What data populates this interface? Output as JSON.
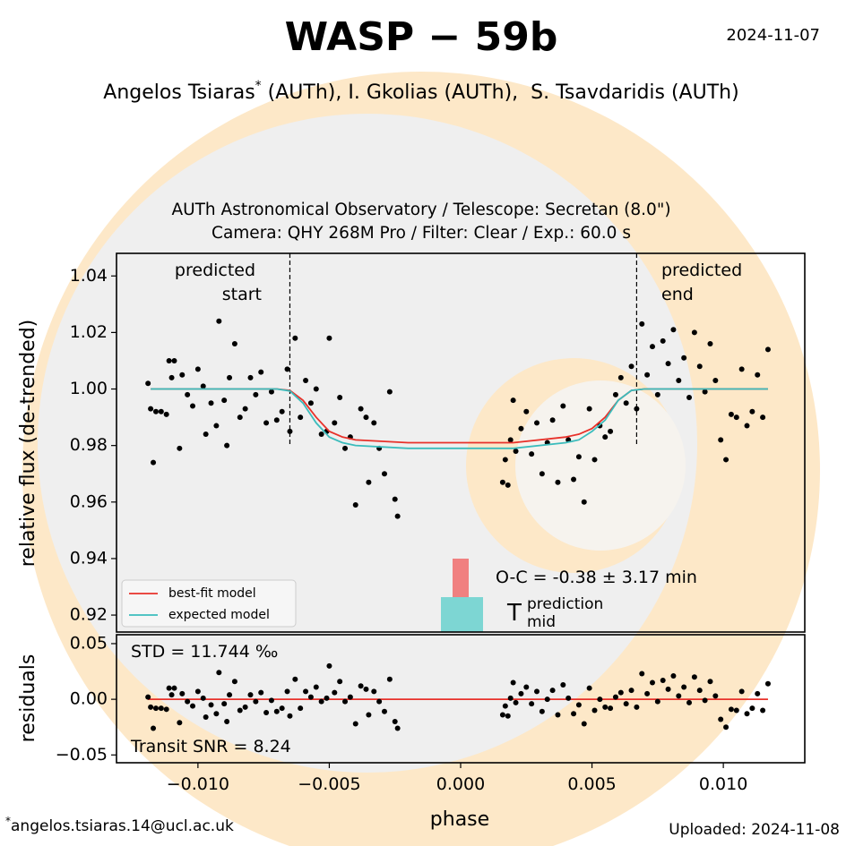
{
  "header": {
    "title": "WASP − 59b",
    "date": "2024-11-07",
    "author_first": "Angelos Tsiaras",
    "footnote_marker": "*",
    "authors_rest": " (AUTh), I. Gkolias (AUTh),  S. Tsavdaridis (AUTh)"
  },
  "footer": {
    "footnote_marker": "*",
    "email": "angelos.tsiaras.14@ucl.ac.uk",
    "uploaded": "Uploaded: 2024-11-08"
  },
  "chart_data": [
    {
      "type": "scatter",
      "subtitle": [
        "AUTh Astronomical Observatory / Telescope: Secretan (8.0\")",
        "Camera: QHY 268M Pro / Filter: Clear / Exp.: 60.0 s"
      ],
      "ylabel": "relative flux (de-trended)",
      "xlim": [
        -0.0131,
        0.0131
      ],
      "ylim": [
        0.914,
        1.048
      ],
      "yticks": [
        0.92,
        0.94,
        0.96,
        0.98,
        {
          "value": 1.0,
          "label": "1.00"
        },
        1.02,
        1.04
      ],
      "color": "#000000",
      "x": [
        -0.0119,
        -0.0118,
        -0.0117,
        -0.0116,
        -0.0114,
        -0.0112,
        -0.0111,
        -0.011,
        -0.0109,
        -0.0107,
        -0.0106,
        -0.0104,
        -0.0102,
        -0.01,
        -0.0098,
        -0.0097,
        -0.0095,
        -0.0093,
        -0.0092,
        -0.009,
        -0.0089,
        -0.0088,
        -0.0086,
        -0.0084,
        -0.0082,
        -0.008,
        -0.0078,
        -0.0076,
        -0.0074,
        -0.0072,
        -0.007,
        -0.0068,
        -0.0066,
        -0.0065,
        -0.0063,
        -0.0061,
        -0.0059,
        -0.0057,
        -0.0055,
        -0.0053,
        -0.0051,
        -0.005,
        -0.0048,
        -0.0046,
        -0.0044,
        -0.0042,
        -0.004,
        -0.0038,
        -0.0036,
        -0.0035,
        -0.0033,
        -0.0031,
        -0.0029,
        -0.0027,
        -0.0025,
        -0.0024,
        0.0016,
        0.0017,
        0.0018,
        0.0019,
        0.002,
        0.0021,
        0.0023,
        0.0025,
        0.0027,
        0.0029,
        0.0031,
        0.0033,
        0.0035,
        0.0037,
        0.0039,
        0.0041,
        0.0043,
        0.0045,
        0.0047,
        0.0049,
        0.0051,
        0.0053,
        0.0055,
        0.0057,
        0.0059,
        0.0061,
        0.0063,
        0.0065,
        0.0067,
        0.0069,
        0.0071,
        0.0073,
        0.0075,
        0.0077,
        0.0079,
        0.0081,
        0.0083,
        0.0085,
        0.0087,
        0.0089,
        0.0091,
        0.0093,
        0.0095,
        0.0097,
        0.0099,
        0.0101,
        0.0103,
        0.0105,
        0.0107,
        0.0109,
        0.0111,
        0.0113,
        0.0115,
        0.0117
      ],
      "values": [
        1.002,
        0.993,
        0.974,
        0.992,
        0.992,
        0.991,
        1.01,
        1.004,
        1.01,
        0.979,
        1.005,
        0.998,
        0.994,
        1.007,
        1.001,
        0.984,
        0.995,
        0.987,
        1.024,
        0.996,
        0.98,
        1.004,
        1.016,
        0.99,
        0.993,
        1.004,
        0.998,
        1.006,
        0.988,
        0.999,
        0.989,
        0.992,
        1.007,
        0.985,
        1.018,
        0.99,
        1.003,
        0.995,
        1.0,
        0.984,
        0.985,
        1.018,
        0.988,
        0.997,
        0.979,
        0.983,
        0.959,
        0.993,
        0.99,
        0.967,
        0.988,
        0.979,
        0.97,
        0.999,
        0.961,
        0.955,
        0.967,
        0.975,
        0.966,
        0.982,
        0.996,
        0.978,
        0.986,
        0.992,
        0.977,
        0.988,
        0.97,
        0.981,
        0.989,
        0.967,
        0.994,
        0.982,
        0.968,
        0.976,
        0.96,
        0.993,
        0.975,
        0.987,
        0.983,
        0.985,
        0.998,
        1.004,
        0.995,
        1.008,
        0.993,
        1.023,
        1.005,
        1.015,
        0.998,
        1.017,
        1.009,
        1.021,
        1.003,
        1.011,
        0.997,
        1.02,
        1.008,
        0.999,
        1.016,
        1.003,
        0.982,
        0.975,
        0.991,
        0.99,
        1.007,
        0.987,
        0.992,
        1.005,
        0.99,
        1.014
      ],
      "series": [
        {
          "name": "best-fit model",
          "color": "#e8312a",
          "x": [
            -0.0118,
            -0.007,
            -0.0065,
            -0.006,
            -0.0055,
            -0.005,
            -0.0045,
            -0.004,
            -0.002,
            0,
            0.002,
            0.004,
            0.0045,
            0.005,
            0.0055,
            0.006,
            0.0065,
            0.007,
            0.0117
          ],
          "values": [
            1,
            1,
            0.9995,
            0.996,
            0.99,
            0.985,
            0.983,
            0.982,
            0.981,
            0.981,
            0.981,
            0.983,
            0.984,
            0.986,
            0.99,
            0.996,
            0.9995,
            1,
            1
          ]
        },
        {
          "name": "expected model",
          "color": "#3bbcbc",
          "x": [
            -0.0118,
            -0.007,
            -0.0065,
            -0.006,
            -0.0055,
            -0.005,
            -0.0045,
            -0.004,
            -0.002,
            0,
            0.002,
            0.004,
            0.0045,
            0.005,
            0.0055,
            0.006,
            0.0065,
            0.007,
            0.0117
          ],
          "values": [
            1,
            1,
            0.9993,
            0.995,
            0.988,
            0.983,
            0.981,
            0.98,
            0.979,
            0.979,
            0.979,
            0.981,
            0.982,
            0.985,
            0.989,
            0.996,
            0.9995,
            1,
            1
          ]
        }
      ],
      "predicted_start": -0.0065,
      "predicted_end": 0.0067,
      "start_label": [
        "predicted",
        "start"
      ],
      "end_label": [
        "predicted",
        "end"
      ],
      "oc_label": "O-C = -0.38 ± 3.17 min",
      "tmid_label": {
        "symbol": "T",
        "sub": "mid",
        "sup": "prediction"
      }
    },
    {
      "type": "scatter",
      "ylabel": "residuals",
      "xlabel": "phase",
      "xlim": [
        -0.0131,
        0.0131
      ],
      "ylim": [
        -0.057,
        0.058
      ],
      "yticks": [
        {
          "value": -0.05,
          "label": "−0.05"
        },
        {
          "value": 0,
          "label": "0.00"
        },
        0.05
      ],
      "xticks": [
        {
          "value": -0.01,
          "label": "−0.010"
        },
        {
          "value": -0.005,
          "label": "−0.005"
        },
        {
          "value": 0,
          "label": "0.000"
        },
        {
          "value": 0.005,
          "label": "0.005"
        },
        {
          "value": 0.01,
          "label": "0.010"
        }
      ],
      "color": "#000000",
      "baseline": 0,
      "baseline_color": "#e8312a",
      "std_label": "STD = 11.744 ‰",
      "snr_label": "Transit SNR = 8.24",
      "x": [
        -0.0119,
        -0.0118,
        -0.0117,
        -0.0116,
        -0.0114,
        -0.0112,
        -0.0111,
        -0.011,
        -0.0109,
        -0.0107,
        -0.0106,
        -0.0104,
        -0.0102,
        -0.01,
        -0.0098,
        -0.0097,
        -0.0095,
        -0.0093,
        -0.0092,
        -0.009,
        -0.0089,
        -0.0088,
        -0.0086,
        -0.0084,
        -0.0082,
        -0.008,
        -0.0078,
        -0.0076,
        -0.0074,
        -0.0072,
        -0.007,
        -0.0068,
        -0.0066,
        -0.0065,
        -0.0063,
        -0.0061,
        -0.0059,
        -0.0057,
        -0.0055,
        -0.0053,
        -0.0051,
        -0.005,
        -0.0048,
        -0.0046,
        -0.0044,
        -0.0042,
        -0.004,
        -0.0038,
        -0.0036,
        -0.0035,
        -0.0033,
        -0.0031,
        -0.0029,
        -0.0027,
        -0.0025,
        -0.0024,
        0.0016,
        0.0017,
        0.0018,
        0.0019,
        0.002,
        0.0021,
        0.0023,
        0.0025,
        0.0027,
        0.0029,
        0.0031,
        0.0033,
        0.0035,
        0.0037,
        0.0039,
        0.0041,
        0.0043,
        0.0045,
        0.0047,
        0.0049,
        0.0051,
        0.0053,
        0.0055,
        0.0057,
        0.0059,
        0.0061,
        0.0063,
        0.0065,
        0.0067,
        0.0069,
        0.0071,
        0.0073,
        0.0075,
        0.0077,
        0.0079,
        0.0081,
        0.0083,
        0.0085,
        0.0087,
        0.0089,
        0.0091,
        0.0093,
        0.0095,
        0.0097,
        0.0099,
        0.0101,
        0.0103,
        0.0105,
        0.0107,
        0.0109,
        0.0111,
        0.0113,
        0.0115,
        0.0117
      ],
      "values": [
        0.002,
        -0.007,
        -0.026,
        -0.008,
        -0.008,
        -0.009,
        0.01,
        0.004,
        0.01,
        -0.021,
        0.005,
        -0.002,
        -0.006,
        0.007,
        0.001,
        -0.016,
        -0.005,
        -0.013,
        0.024,
        -0.004,
        -0.02,
        0.004,
        0.016,
        -0.01,
        -0.007,
        0.004,
        -0.002,
        0.006,
        -0.012,
        -0.001,
        -0.011,
        -0.008,
        0.007,
        -0.015,
        0.018,
        -0.008,
        0.007,
        0.002,
        0.011,
        -0.002,
        0.001,
        0.03,
        0.006,
        0.016,
        -0.002,
        0.002,
        -0.022,
        0.012,
        0.009,
        -0.014,
        0.007,
        -0.002,
        -0.011,
        0.018,
        -0.02,
        -0.026,
        -0.014,
        -0.006,
        -0.015,
        0.001,
        0.015,
        -0.003,
        0.005,
        0.011,
        -0.004,
        0.007,
        -0.011,
        0.0,
        0.008,
        -0.014,
        0.013,
        0.001,
        -0.013,
        -0.005,
        -0.022,
        0.01,
        -0.01,
        0.0,
        -0.007,
        -0.008,
        0.002,
        0.006,
        -0.004,
        0.008,
        -0.007,
        0.023,
        0.005,
        0.015,
        -0.002,
        0.017,
        0.009,
        0.021,
        0.003,
        0.011,
        -0.003,
        0.02,
        0.008,
        -0.001,
        0.016,
        0.003,
        -0.018,
        -0.025,
        -0.009,
        -0.01,
        0.007,
        -0.013,
        -0.008,
        0.005,
        -0.01,
        0.014
      ]
    }
  ]
}
